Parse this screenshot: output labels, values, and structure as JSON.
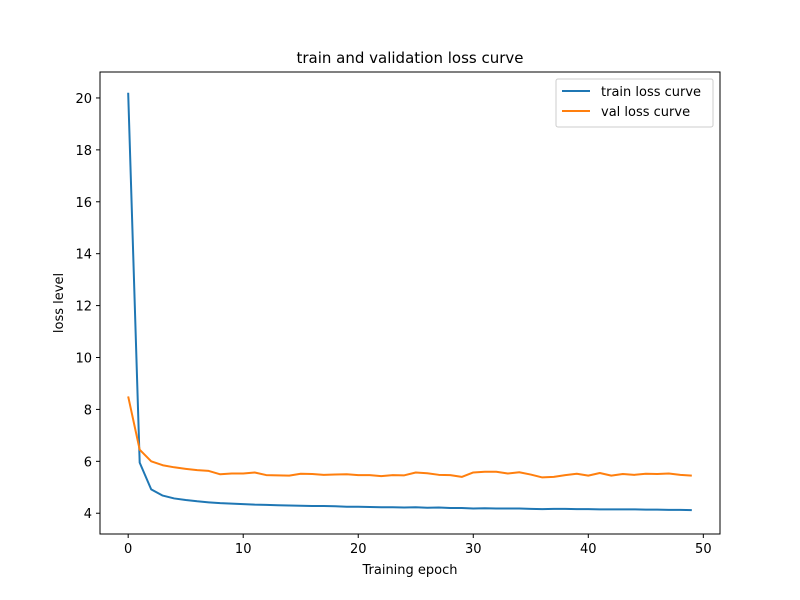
{
  "chart_data": {
    "type": "line",
    "title": "train and validation loss curve",
    "xlabel": "Training epoch",
    "ylabel": "loss level",
    "xlim": [
      -2.45,
      51.45
    ],
    "ylim": [
      3.2,
      21.0
    ],
    "x_ticks": [
      0,
      10,
      20,
      30,
      40,
      50
    ],
    "y_ticks": [
      4,
      6,
      8,
      10,
      12,
      14,
      16,
      18,
      20
    ],
    "grid": false,
    "legend_position": "top-right",
    "x": [
      0,
      1,
      2,
      3,
      4,
      5,
      6,
      7,
      8,
      9,
      10,
      11,
      12,
      13,
      14,
      15,
      16,
      17,
      18,
      19,
      20,
      21,
      22,
      23,
      24,
      25,
      26,
      27,
      28,
      29,
      30,
      31,
      32,
      33,
      34,
      35,
      36,
      37,
      38,
      39,
      40,
      41,
      42,
      43,
      44,
      45,
      46,
      47,
      48,
      49
    ],
    "series": [
      {
        "name": "train loss curve",
        "color": "#1f77b4",
        "values": [
          20.2,
          5.95,
          4.92,
          4.68,
          4.57,
          4.51,
          4.46,
          4.42,
          4.39,
          4.37,
          4.35,
          4.33,
          4.32,
          4.31,
          4.3,
          4.29,
          4.28,
          4.28,
          4.27,
          4.25,
          4.25,
          4.24,
          4.23,
          4.23,
          4.22,
          4.23,
          4.21,
          4.22,
          4.2,
          4.2,
          4.18,
          4.19,
          4.18,
          4.18,
          4.18,
          4.17,
          4.16,
          4.17,
          4.17,
          4.16,
          4.16,
          4.15,
          4.15,
          4.15,
          4.15,
          4.14,
          4.14,
          4.13,
          4.13,
          4.12
        ]
      },
      {
        "name": "val loss curve",
        "color": "#ff7f0e",
        "values": [
          8.5,
          6.45,
          6.0,
          5.85,
          5.77,
          5.71,
          5.66,
          5.63,
          5.5,
          5.53,
          5.53,
          5.57,
          5.47,
          5.46,
          5.45,
          5.52,
          5.51,
          5.48,
          5.49,
          5.5,
          5.47,
          5.47,
          5.43,
          5.47,
          5.46,
          5.57,
          5.54,
          5.48,
          5.47,
          5.4,
          5.57,
          5.6,
          5.6,
          5.53,
          5.58,
          5.49,
          5.38,
          5.4,
          5.47,
          5.52,
          5.45,
          5.55,
          5.45,
          5.51,
          5.48,
          5.52,
          5.51,
          5.53,
          5.48,
          5.45
        ]
      }
    ]
  }
}
